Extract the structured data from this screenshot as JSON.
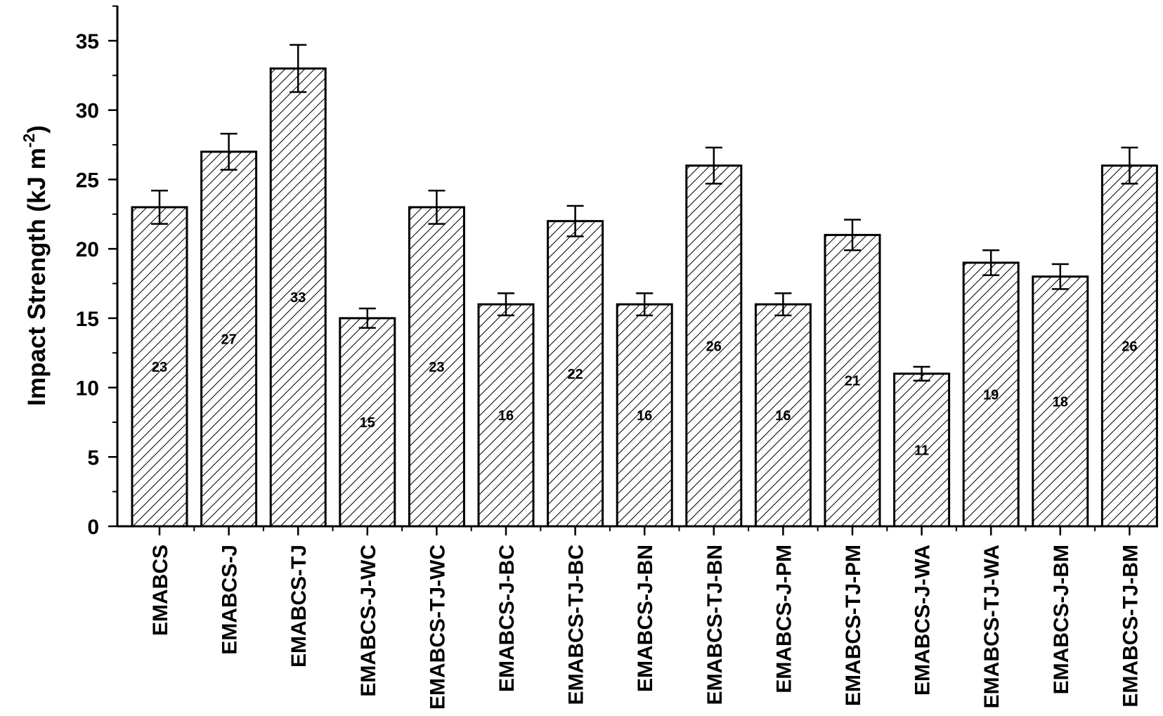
{
  "chart_data": {
    "type": "bar",
    "title": "",
    "xlabel": "",
    "ylabel": {
      "main": "Impact Strength (kJ m",
      "sup": "-2",
      "end": ")"
    },
    "ylim": [
      0,
      37.5
    ],
    "yticks": [
      0,
      5,
      10,
      15,
      20,
      25,
      30,
      35
    ],
    "grid": false,
    "pattern": "diagonal-hatch",
    "categories": [
      "EMABCS",
      "EMABCS-J",
      "EMABCS-TJ",
      "EMABCS-J-WC",
      "EMABCS-TJ-WC",
      "EMABCS-J-BC",
      "EMABCS-TJ-BC",
      "EMABCS-J-BN",
      "EMABCS-TJ-BN",
      "EMABCS-J-PM",
      "EMABCS-TJ-PM",
      "EMABCS-J-WA",
      "EMABCS-TJ-WA",
      "EMABCS-J-BM",
      "EMABCS-TJ-BM"
    ],
    "values": [
      23,
      27,
      33,
      15,
      23,
      16,
      22,
      16,
      26,
      16,
      21,
      11,
      19,
      18,
      26
    ],
    "errors": [
      1.2,
      1.3,
      1.7,
      0.7,
      1.2,
      0.8,
      1.1,
      0.8,
      1.3,
      0.8,
      1.1,
      0.5,
      0.9,
      0.9,
      1.3
    ],
    "data_labels": [
      "23",
      "27",
      "33",
      "15",
      "23",
      "16",
      "22",
      "16",
      "26",
      "16",
      "21",
      "11",
      "19",
      "18",
      "26"
    ]
  }
}
